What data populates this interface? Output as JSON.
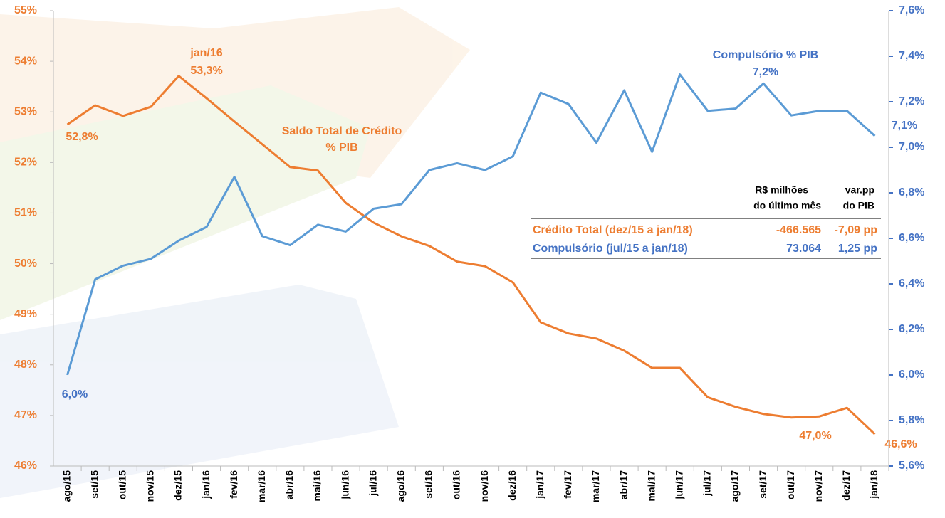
{
  "chart_data": {
    "type": "line",
    "categories": [
      "ago/15",
      "set/15",
      "out/15",
      "nov/15",
      "dez/15",
      "jan/16",
      "fev/16",
      "mar/16",
      "abr/16",
      "mai/16",
      "jun/16",
      "jul/16",
      "ago/16",
      "set/16",
      "out/16",
      "nov/16",
      "dez/16",
      "jan/17",
      "fev/17",
      "mar/17",
      "abr/17",
      "mai/17",
      "jun/17",
      "jul/17",
      "ago/17",
      "set/17",
      "out/17",
      "nov/17",
      "dez/17",
      "jan/18"
    ],
    "series": [
      {
        "color": "#ED7D31",
        "values": [
          52.75,
          53.13,
          52.92,
          53.1,
          53.71,
          53.27,
          52.81,
          52.36,
          51.91,
          51.84,
          51.2,
          50.81,
          50.54,
          50.35,
          50.04,
          49.95,
          49.63,
          48.84,
          48.62,
          48.52,
          48.28,
          47.94,
          47.94,
          47.36,
          47.17,
          47.03,
          46.96,
          46.98,
          47.15,
          46.63
        ]
      },
      {
        "color": "#5B9BD5",
        "axis": "y2",
        "values": [
          6.0,
          6.42,
          6.48,
          6.51,
          6.59,
          6.65,
          6.87,
          6.61,
          6.57,
          6.66,
          6.63,
          6.73,
          6.75,
          6.9,
          6.93,
          6.9,
          6.96,
          7.24,
          7.19,
          7.02,
          7.25,
          6.98,
          7.32,
          7.16,
          7.17,
          7.28,
          7.14,
          7.16,
          7.16,
          7.05
        ]
      }
    ],
    "ylim": [
      46,
      55
    ],
    "yticks": [
      {
        "value": 46,
        "label": "46%"
      },
      {
        "value": 47,
        "label": "47%"
      },
      {
        "value": 48,
        "label": "48%"
      },
      {
        "value": 49,
        "label": "49%"
      },
      {
        "value": 50,
        "label": "50%"
      },
      {
        "value": 51,
        "label": "51%"
      },
      {
        "value": 52,
        "label": "52%"
      },
      {
        "value": 53,
        "label": "53%"
      },
      {
        "value": 54,
        "label": "54%"
      },
      {
        "value": 55,
        "label": "55%"
      }
    ],
    "y2lim": [
      5.6,
      7.6
    ],
    "y2ticks": [
      {
        "value": 5.6,
        "label": "5,6%"
      },
      {
        "value": 5.8,
        "label": "5,8%"
      },
      {
        "value": 6.0,
        "label": "6,0%"
      },
      {
        "value": 6.2,
        "label": "6,2%"
      },
      {
        "value": 6.4,
        "label": "6,4%"
      },
      {
        "value": 6.6,
        "label": "6,6%"
      },
      {
        "value": 6.8,
        "label": "6,8%"
      },
      {
        "value": 7.0,
        "label": "7,0%"
      },
      {
        "value": 7.2,
        "label": "7,2%"
      },
      {
        "value": 7.4,
        "label": "7,4%"
      },
      {
        "value": 7.6,
        "label": "7,6%"
      }
    ],
    "annotations": [
      "jan/16",
      "53,3%",
      "52,8%",
      "Saldo Total de Crédito",
      "% PIB",
      "Compulsório % PIB",
      "7,2%",
      "6,0%",
      "7,1%",
      "47,0%",
      "46,6%"
    ],
    "table": {
      "header": [
        [
          "R$ milhões",
          "do último mês"
        ],
        [
          "var.pp",
          "do PIB"
        ]
      ],
      "rows": [
        [
          "Crédito Total (dez/15 a jan/18)",
          "-466.565",
          "-7,09 pp"
        ],
        [
          "Compulsório (jul/15 a jan/18)",
          "73.064",
          "1,25 pp"
        ]
      ]
    }
  }
}
